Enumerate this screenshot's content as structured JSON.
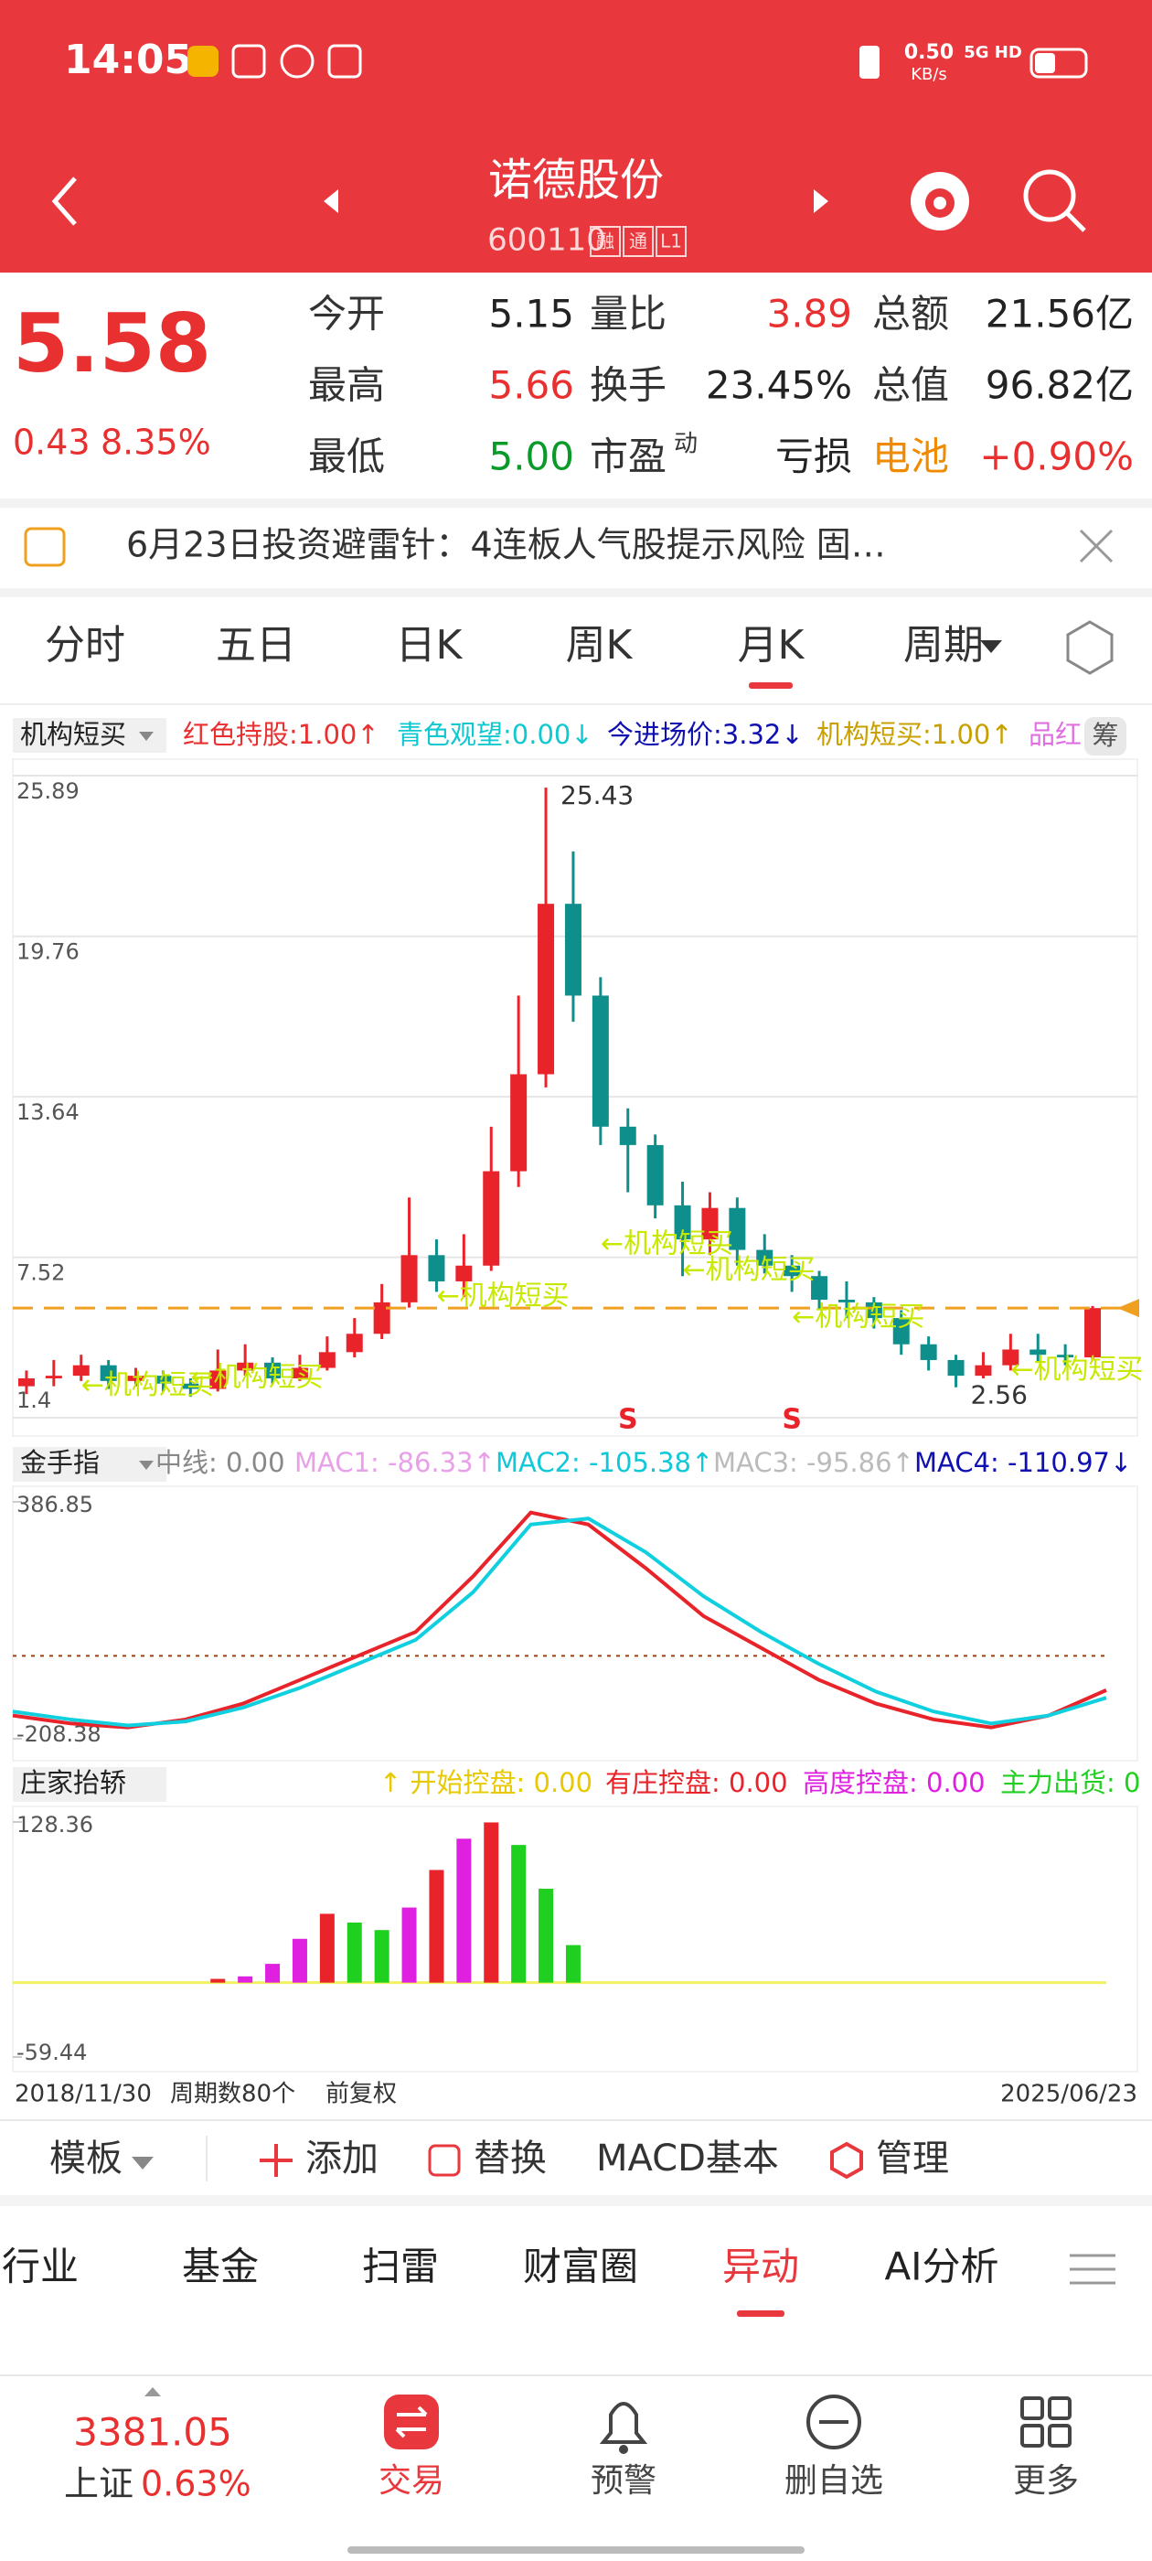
{
  "status": {
    "time": "14:05",
    "speed": "0.50",
    "speed_unit": "KB/s",
    "network": "5G HD"
  },
  "header": {
    "name": "诺德股份",
    "code": "600110",
    "badges": [
      "融",
      "通",
      "L1"
    ]
  },
  "quote": {
    "price": "5.58",
    "change": "0.43",
    "change_pct": "8.35%",
    "fields": [
      {
        "label": "今开",
        "value": "5.15",
        "color": "#222222"
      },
      {
        "label": "量比",
        "value": "3.89",
        "color": "#e93030"
      },
      {
        "label": "总额",
        "value": "21.56亿",
        "color": "#222222"
      },
      {
        "label": "最高",
        "value": "5.66",
        "color": "#e93030"
      },
      {
        "label": "换手",
        "value": "23.45%",
        "color": "#222222"
      },
      {
        "label": "总值",
        "value": "96.82亿",
        "color": "#222222"
      },
      {
        "label": "最低",
        "value": "5.00",
        "color": "#0a9a2a"
      },
      {
        "label": "市盈",
        "sup": "动",
        "value": "亏损",
        "color": "#222222"
      },
      {
        "label": "电池",
        "label_color": "#f08a00",
        "value": "+0.90%",
        "color": "#e93030"
      }
    ]
  },
  "news": "6月23日投资避雷针：4连板人气股提示风险 固…",
  "period_tabs": [
    "分时",
    "五日",
    "日K",
    "周K",
    "月K",
    "周期"
  ],
  "selected_period": 4,
  "kline": {
    "type": "candlestick",
    "indicator": "机构短买",
    "side_tag": "筹",
    "legend": [
      {
        "text": "红色持股:1.00↑",
        "color": "#e93030"
      },
      {
        "text": "青色观望:0.00↓",
        "color": "#10c8d0"
      },
      {
        "text": "今进场价:3.32↓",
        "color": "#1010b0"
      },
      {
        "text": "机构短买:1.00↑",
        "color": "#c8a000"
      },
      {
        "text": "品红",
        "color": "#e070e0"
      }
    ],
    "ylim": [
      1.4,
      25.89
    ],
    "yticks": [
      25.89,
      19.76,
      13.64,
      7.52,
      1.4
    ],
    "open": [
      2.6,
      2.9,
      3.0,
      3.4,
      2.8,
      3.0,
      2.7,
      2.5,
      3.2,
      3.5,
      2.9,
      3.3,
      3.9,
      4.6,
      5.8,
      7.6,
      6.6,
      7.2,
      10.8,
      14.5,
      21.0,
      17.5,
      12.5,
      11.8,
      9.5,
      8.2,
      9.4,
      7.8,
      7.2,
      6.8,
      5.9,
      5.8,
      5.2,
      4.2,
      3.6,
      3.0,
      3.4,
      4.0,
      3.8,
      3.7
    ],
    "high": [
      3.2,
      3.6,
      3.8,
      3.6,
      3.3,
      3.2,
      2.9,
      4.0,
      4.2,
      3.7,
      3.8,
      4.5,
      5.2,
      6.5,
      9.8,
      8.2,
      8.4,
      12.5,
      17.5,
      25.43,
      23.0,
      18.2,
      13.2,
      12.2,
      10.4,
      10.0,
      9.8,
      8.4,
      7.6,
      7.0,
      6.6,
      6.0,
      5.5,
      4.5,
      3.8,
      3.9,
      4.6,
      4.6,
      4.2,
      5.66
    ],
    "low": [
      2.3,
      2.6,
      2.8,
      2.5,
      2.6,
      2.4,
      2.2,
      2.4,
      3.0,
      2.7,
      2.8,
      3.2,
      3.7,
      4.4,
      5.6,
      6.2,
      6.0,
      7.0,
      10.2,
      14.0,
      16.5,
      11.8,
      10.0,
      9.0,
      6.8,
      7.6,
      7.2,
      6.9,
      6.2,
      5.5,
      5.2,
      4.8,
      3.8,
      3.2,
      2.56,
      2.9,
      3.2,
      3.5,
      3.4,
      3.6
    ],
    "close": [
      2.9,
      3.0,
      3.4,
      2.8,
      3.0,
      2.7,
      2.5,
      3.2,
      3.5,
      2.9,
      3.3,
      3.9,
      4.6,
      5.8,
      7.6,
      6.6,
      7.2,
      10.8,
      14.5,
      21.0,
      17.5,
      12.5,
      11.8,
      9.5,
      8.2,
      9.4,
      7.8,
      7.2,
      6.8,
      5.9,
      5.8,
      5.2,
      4.2,
      3.6,
      3.0,
      3.4,
      4.0,
      3.8,
      3.7,
      5.58
    ],
    "up_color": "#e8232a",
    "down_color": "#0e8f8c",
    "annotations": [
      {
        "text": "25.43",
        "index": 19,
        "value": 25.43
      },
      {
        "text": "2.56",
        "index": 34,
        "value": 2.56
      }
    ],
    "signals": [
      {
        "text": "S",
        "index": 22
      },
      {
        "text": "S",
        "index": 28
      }
    ],
    "labels": [
      {
        "text": "←机构短买",
        "index": 2,
        "value": 2.6
      },
      {
        "text": "←机构短买",
        "index": 6,
        "value": 2.9
      },
      {
        "text": "←机构短买",
        "index": 15,
        "value": 6.0
      },
      {
        "text": "←机构短买",
        "index": 21,
        "value": 8.0
      },
      {
        "text": "←机构短买",
        "index": 24,
        "value": 7.0
      },
      {
        "text": "←机构短买",
        "index": 28,
        "value": 5.2
      },
      {
        "text": "←机构短买",
        "index": 36,
        "value": 3.2
      }
    ]
  },
  "panel2": {
    "type": "line",
    "name": "金手指",
    "legend": [
      {
        "text": "中线: 0.00",
        "color": "#888888"
      },
      {
        "text": "MAC1: -86.33↑",
        "color": "#e8a0e8"
      },
      {
        "text": "MAC2: -105.38↑",
        "color": "#10c8d8"
      },
      {
        "text": "MAC3: -95.86↑",
        "color": "#bbbbbb"
      },
      {
        "text": "MAC4: -110.97↓",
        "color": "#1010b0"
      }
    ],
    "ylim": [
      -208.38,
      386.85
    ],
    "yticks": [
      386.85,
      -208.38
    ],
    "midline": 0,
    "series": [
      {
        "name": "MAC1",
        "color": "#e8232a",
        "values": [
          -150,
          -170,
          -180,
          -160,
          -120,
          -60,
          0,
          60,
          200,
          360,
          330,
          220,
          100,
          20,
          -60,
          -120,
          -160,
          -180,
          -150,
          -86.33
        ]
      },
      {
        "name": "MAC2",
        "color": "#10d0e0",
        "values": [
          -140,
          -160,
          -175,
          -165,
          -130,
          -80,
          -20,
          40,
          160,
          330,
          345,
          260,
          150,
          60,
          -20,
          -90,
          -140,
          -170,
          -150,
          -105.38
        ]
      }
    ]
  },
  "panel3": {
    "type": "bar",
    "name": "庄家抬轿",
    "legend": [
      {
        "text": "↑ 开始控盘: 0.00",
        "color": "#e8c800"
      },
      {
        "text": "有庄控盘: 0.00",
        "color": "#e8232a"
      },
      {
        "text": "高度控盘: 0.00",
        "color": "#e020e0"
      },
      {
        "text": "主力出货: 0",
        "color": "#20d020"
      }
    ],
    "ylim": [
      -59.44,
      128.36
    ],
    "yticks": [
      128.36,
      -59.44
    ],
    "baseline": 0,
    "values": [
      0,
      0,
      0,
      0,
      0,
      0,
      0,
      3,
      5,
      15,
      35,
      55,
      48,
      42,
      60,
      90,
      115,
      128,
      110,
      75,
      30,
      0,
      0,
      0,
      0,
      0,
      0,
      0,
      0,
      0,
      0,
      0,
      0,
      0,
      0,
      0,
      0,
      0,
      0,
      0
    ],
    "colors": [
      null,
      null,
      null,
      null,
      null,
      null,
      null,
      "#e8232a",
      "#e020e0",
      "#e020e0",
      "#e020e0",
      "#e8232a",
      "#20d020",
      "#20d020",
      "#e020e0",
      "#e8232a",
      "#e020e0",
      "#e8232a",
      "#20d020",
      "#20d020",
      "#20d020",
      null,
      null,
      null,
      null,
      null,
      null,
      null,
      null,
      null,
      null,
      null,
      null,
      null,
      null,
      null,
      null,
      null,
      null,
      null
    ]
  },
  "footer_dates": {
    "start": "2018/11/30",
    "periods": "周期数80个",
    "adjust": "前复权",
    "end": "2025/06/23"
  },
  "toolbar": [
    "模板",
    "添加",
    "替换",
    "MACD基本",
    "管理"
  ],
  "sub_tabs": [
    "行业",
    "基金",
    "扫雷",
    "财富圈",
    "异动",
    "AI分析"
  ],
  "selected_sub_tab": 4,
  "index": {
    "value": "3381.05",
    "name": "上证",
    "change": "0.63%"
  },
  "nav": [
    "交易",
    "预警",
    "删自选",
    "更多"
  ]
}
